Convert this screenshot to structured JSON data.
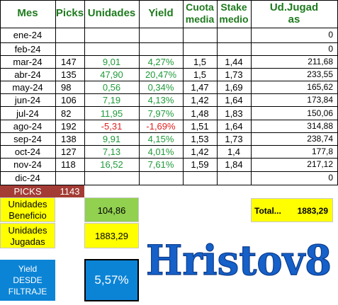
{
  "headers": {
    "mes": "Mes",
    "picks": "Picks",
    "unidades": "Unidades",
    "yield": "Yield",
    "cuota_line1": "Cuota",
    "cuota_line2": "media",
    "stake_line1": "Stake",
    "stake_line2": "medio",
    "jugadas_line1": "Ud.Jugad",
    "jugadas_line2": "as"
  },
  "rows": [
    {
      "mes": "ene-24",
      "picks": "",
      "unidades": "",
      "yield": "",
      "cuota": "",
      "stake": "",
      "jugadas": "0"
    },
    {
      "mes": "feb-24",
      "picks": "",
      "unidades": "",
      "yield": "",
      "cuota": "",
      "stake": "",
      "jugadas": "0"
    },
    {
      "mes": "mar-24",
      "picks": "147",
      "unidades": "9,01",
      "yield": "4,27%",
      "cuota": "1,5",
      "stake": "1,44",
      "jugadas": "211,68"
    },
    {
      "mes": "abr-24",
      "picks": "135",
      "unidades": "47,90",
      "yield": "20,47%",
      "cuota": "1,5",
      "stake": "1,73",
      "jugadas": "233,55"
    },
    {
      "mes": "may-24",
      "picks": "98",
      "unidades": "0,56",
      "yield": "0,34%",
      "cuota": "1,47",
      "stake": "1,69",
      "jugadas": "165,62"
    },
    {
      "mes": "jun-24",
      "picks": "106",
      "unidades": "7,19",
      "yield": "4,13%",
      "cuota": "1,42",
      "stake": "1,64",
      "jugadas": "173,84"
    },
    {
      "mes": "jul-24",
      "picks": "82",
      "unidades": "11,95",
      "yield": "7,97%",
      "cuota": "1,48",
      "stake": "1,83",
      "jugadas": "150,06"
    },
    {
      "mes": "ago-24",
      "picks": "192",
      "unidades": "-5,31",
      "yield": "-1,69%",
      "cuota": "1,51",
      "stake": "1,64",
      "jugadas": "314,88"
    },
    {
      "mes": "sep-24",
      "picks": "138",
      "unidades": "9,91",
      "yield": "4,15%",
      "cuota": "1,53",
      "stake": "1,73",
      "jugadas": "238,74"
    },
    {
      "mes": "oct-24",
      "picks": "127",
      "unidades": "7,13",
      "yield": "4,01%",
      "cuota": "1,42",
      "stake": "1,4",
      "jugadas": "177,8"
    },
    {
      "mes": "nov-24",
      "picks": "118",
      "unidades": "16,52",
      "yield": "7,61%",
      "cuota": "1,59",
      "stake": "1,84",
      "jugadas": "217,12"
    },
    {
      "mes": "dic-24",
      "picks": "",
      "unidades": "",
      "yield": "",
      "cuota": "",
      "stake": "",
      "jugadas": "0"
    }
  ],
  "summary": {
    "picks_label": "PICKS",
    "picks_value": "1143",
    "beneficio_line1": "Unidades",
    "beneficio_line2": "Beneficio",
    "beneficio_value": "104,86",
    "jugadas_line1": "Unidades",
    "jugadas_line2": "Jugadas",
    "jugadas_value": "1883,29",
    "total_label": "Total...",
    "total_value": "1883,29",
    "yield_line1": "Yield",
    "yield_line2": "DESDE",
    "yield_line3": "FILTRAJE",
    "yield_value": "5,57%"
  },
  "watermark": "Hristov8",
  "colors": {
    "header_green": "#1e7a1e",
    "positive": "#1f9a3a",
    "negative": "#e02020",
    "picks_bg": "#a33c35",
    "yellow": "#ffff00",
    "green_fill": "#92d050",
    "blue": "#0b84d6",
    "logo_blue": "#1560c9"
  }
}
